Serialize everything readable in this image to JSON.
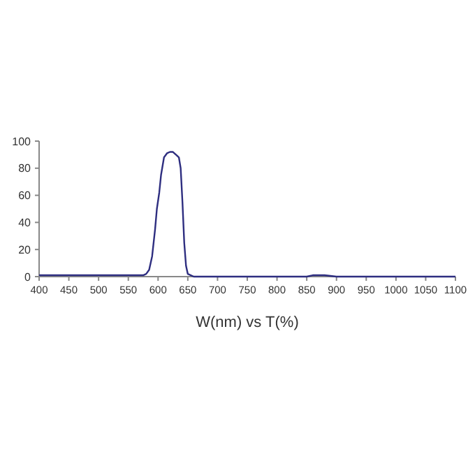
{
  "chart_data": {
    "type": "line",
    "xlabel": "W(nm) vs T(%)",
    "xlim": [
      400,
      1100
    ],
    "ylim": [
      0,
      100
    ],
    "xticks": [
      400,
      450,
      500,
      550,
      600,
      650,
      700,
      750,
      800,
      850,
      900,
      950,
      1000,
      1050,
      1100
    ],
    "yticks": [
      0,
      20,
      40,
      60,
      80,
      100
    ],
    "marker": "none",
    "line_style": "solid",
    "series": [
      {
        "color": "#2e2e80",
        "x": [
          400,
          450,
          500,
          560,
          575,
          580,
          585,
          590,
          595,
          598,
          602,
          605,
          610,
          615,
          620,
          625,
          630,
          635,
          638,
          641,
          644,
          647,
          650,
          660,
          700,
          800,
          850,
          860,
          880,
          900,
          1000,
          1100
        ],
        "values": [
          1,
          1,
          1,
          1,
          1,
          2,
          5,
          15,
          35,
          50,
          62,
          75,
          88,
          91,
          92,
          92,
          90,
          88,
          80,
          55,
          25,
          8,
          2,
          0,
          0,
          0,
          0,
          1,
          1,
          0,
          0,
          0
        ]
      }
    ]
  }
}
